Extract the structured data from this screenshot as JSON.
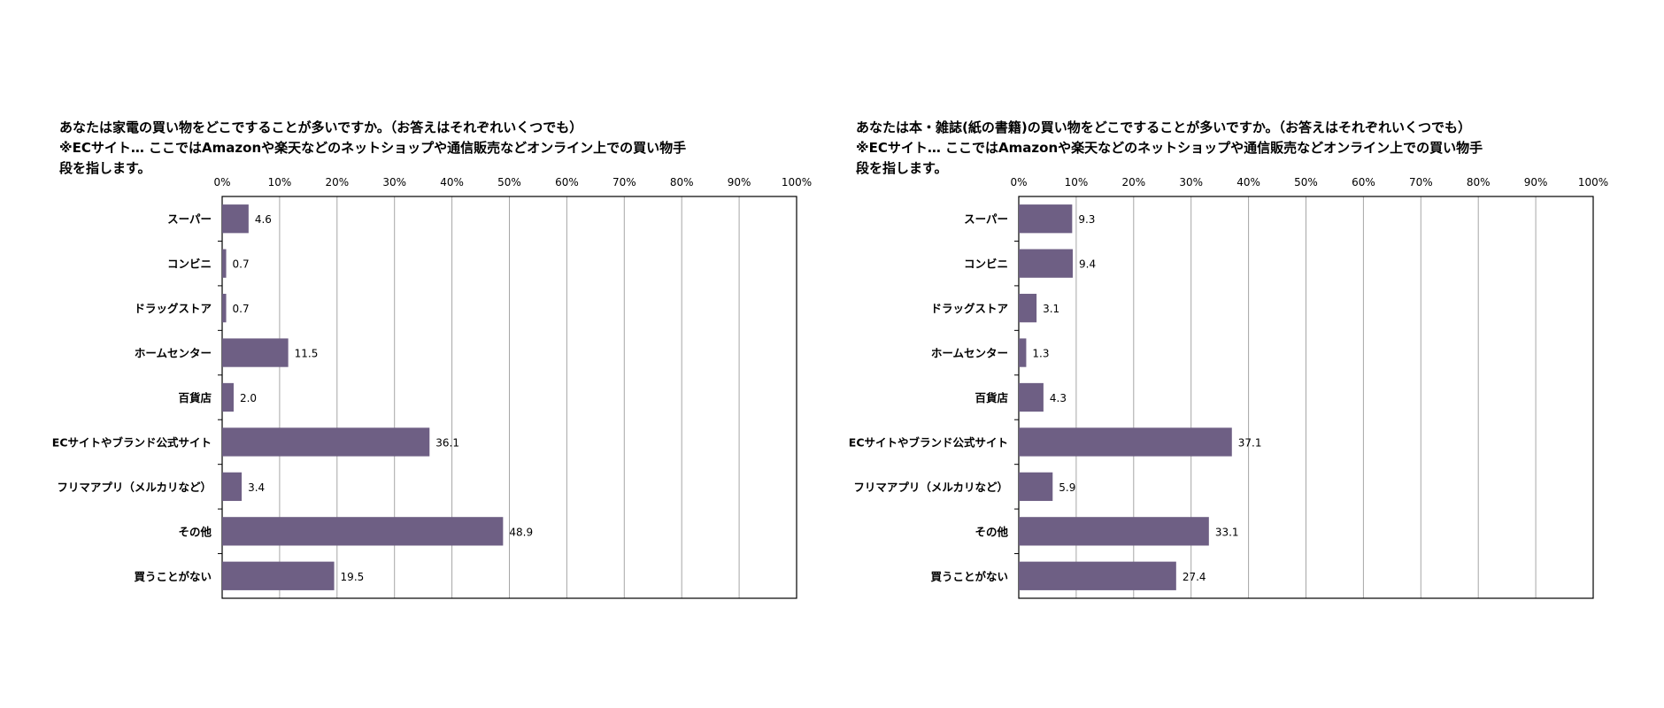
{
  "chart_data": [
    {
      "type": "bar",
      "orientation": "horizontal",
      "title": "あなたは家電の買い物をどこですることが多いですか。（お答えはそれぞれいくつでも）\n※ECサイト… ここではAmazonや楽天などのネットショップや通信販売などオンライン上での買い物手\n段を指します。",
      "categories": [
        "スーパー",
        "コンビニ",
        "ドラッグストア",
        "ホームセンター",
        "百貨店",
        "ECサイトやブランド公式サイト",
        "フリマアプリ（メルカリなど）",
        "その他",
        "買うことがない"
      ],
      "values": [
        4.6,
        0.7,
        0.7,
        11.5,
        2.0,
        36.1,
        3.4,
        48.9,
        19.5
      ],
      "value_labels": [
        "4.6",
        "0.7",
        "0.7",
        "11.5",
        "2.0",
        "36.1",
        "3.4",
        "48.9",
        "19.5"
      ],
      "xlim": [
        0,
        100
      ],
      "x_ticks": [
        "0%",
        "10%",
        "20%",
        "30%",
        "40%",
        "50%",
        "60%",
        "70%",
        "80%",
        "90%",
        "100%"
      ],
      "axis_position": "top",
      "grid": true,
      "bar_color": "#6e5f84"
    },
    {
      "type": "bar",
      "orientation": "horizontal",
      "title": "あなたは本・雑誌(紙の書籍)の買い物をどこですることが多いですか。（お答えはそれぞれいくつでも）\n※ECサイト… ここではAmazonや楽天などのネットショップや通信販売などオンライン上での買い物手\n段を指します。",
      "categories": [
        "スーパー",
        "コンビニ",
        "ドラッグストア",
        "ホームセンター",
        "百貨店",
        "ECサイトやブランド公式サイト",
        "フリマアプリ（メルカリなど）",
        "その他",
        "買うことがない"
      ],
      "values": [
        9.3,
        9.4,
        3.1,
        1.3,
        4.3,
        37.1,
        5.9,
        33.1,
        27.4
      ],
      "value_labels": [
        "9.3",
        "9.4",
        "3.1",
        "1.3",
        "4.3",
        "37.1",
        "5.9",
        "33.1",
        "27.4"
      ],
      "xlim": [
        0,
        100
      ],
      "x_ticks": [
        "0%",
        "10%",
        "20%",
        "30%",
        "40%",
        "50%",
        "60%",
        "70%",
        "80%",
        "90%",
        "100%"
      ],
      "axis_position": "top",
      "grid": true,
      "bar_color": "#6e5f84"
    }
  ]
}
